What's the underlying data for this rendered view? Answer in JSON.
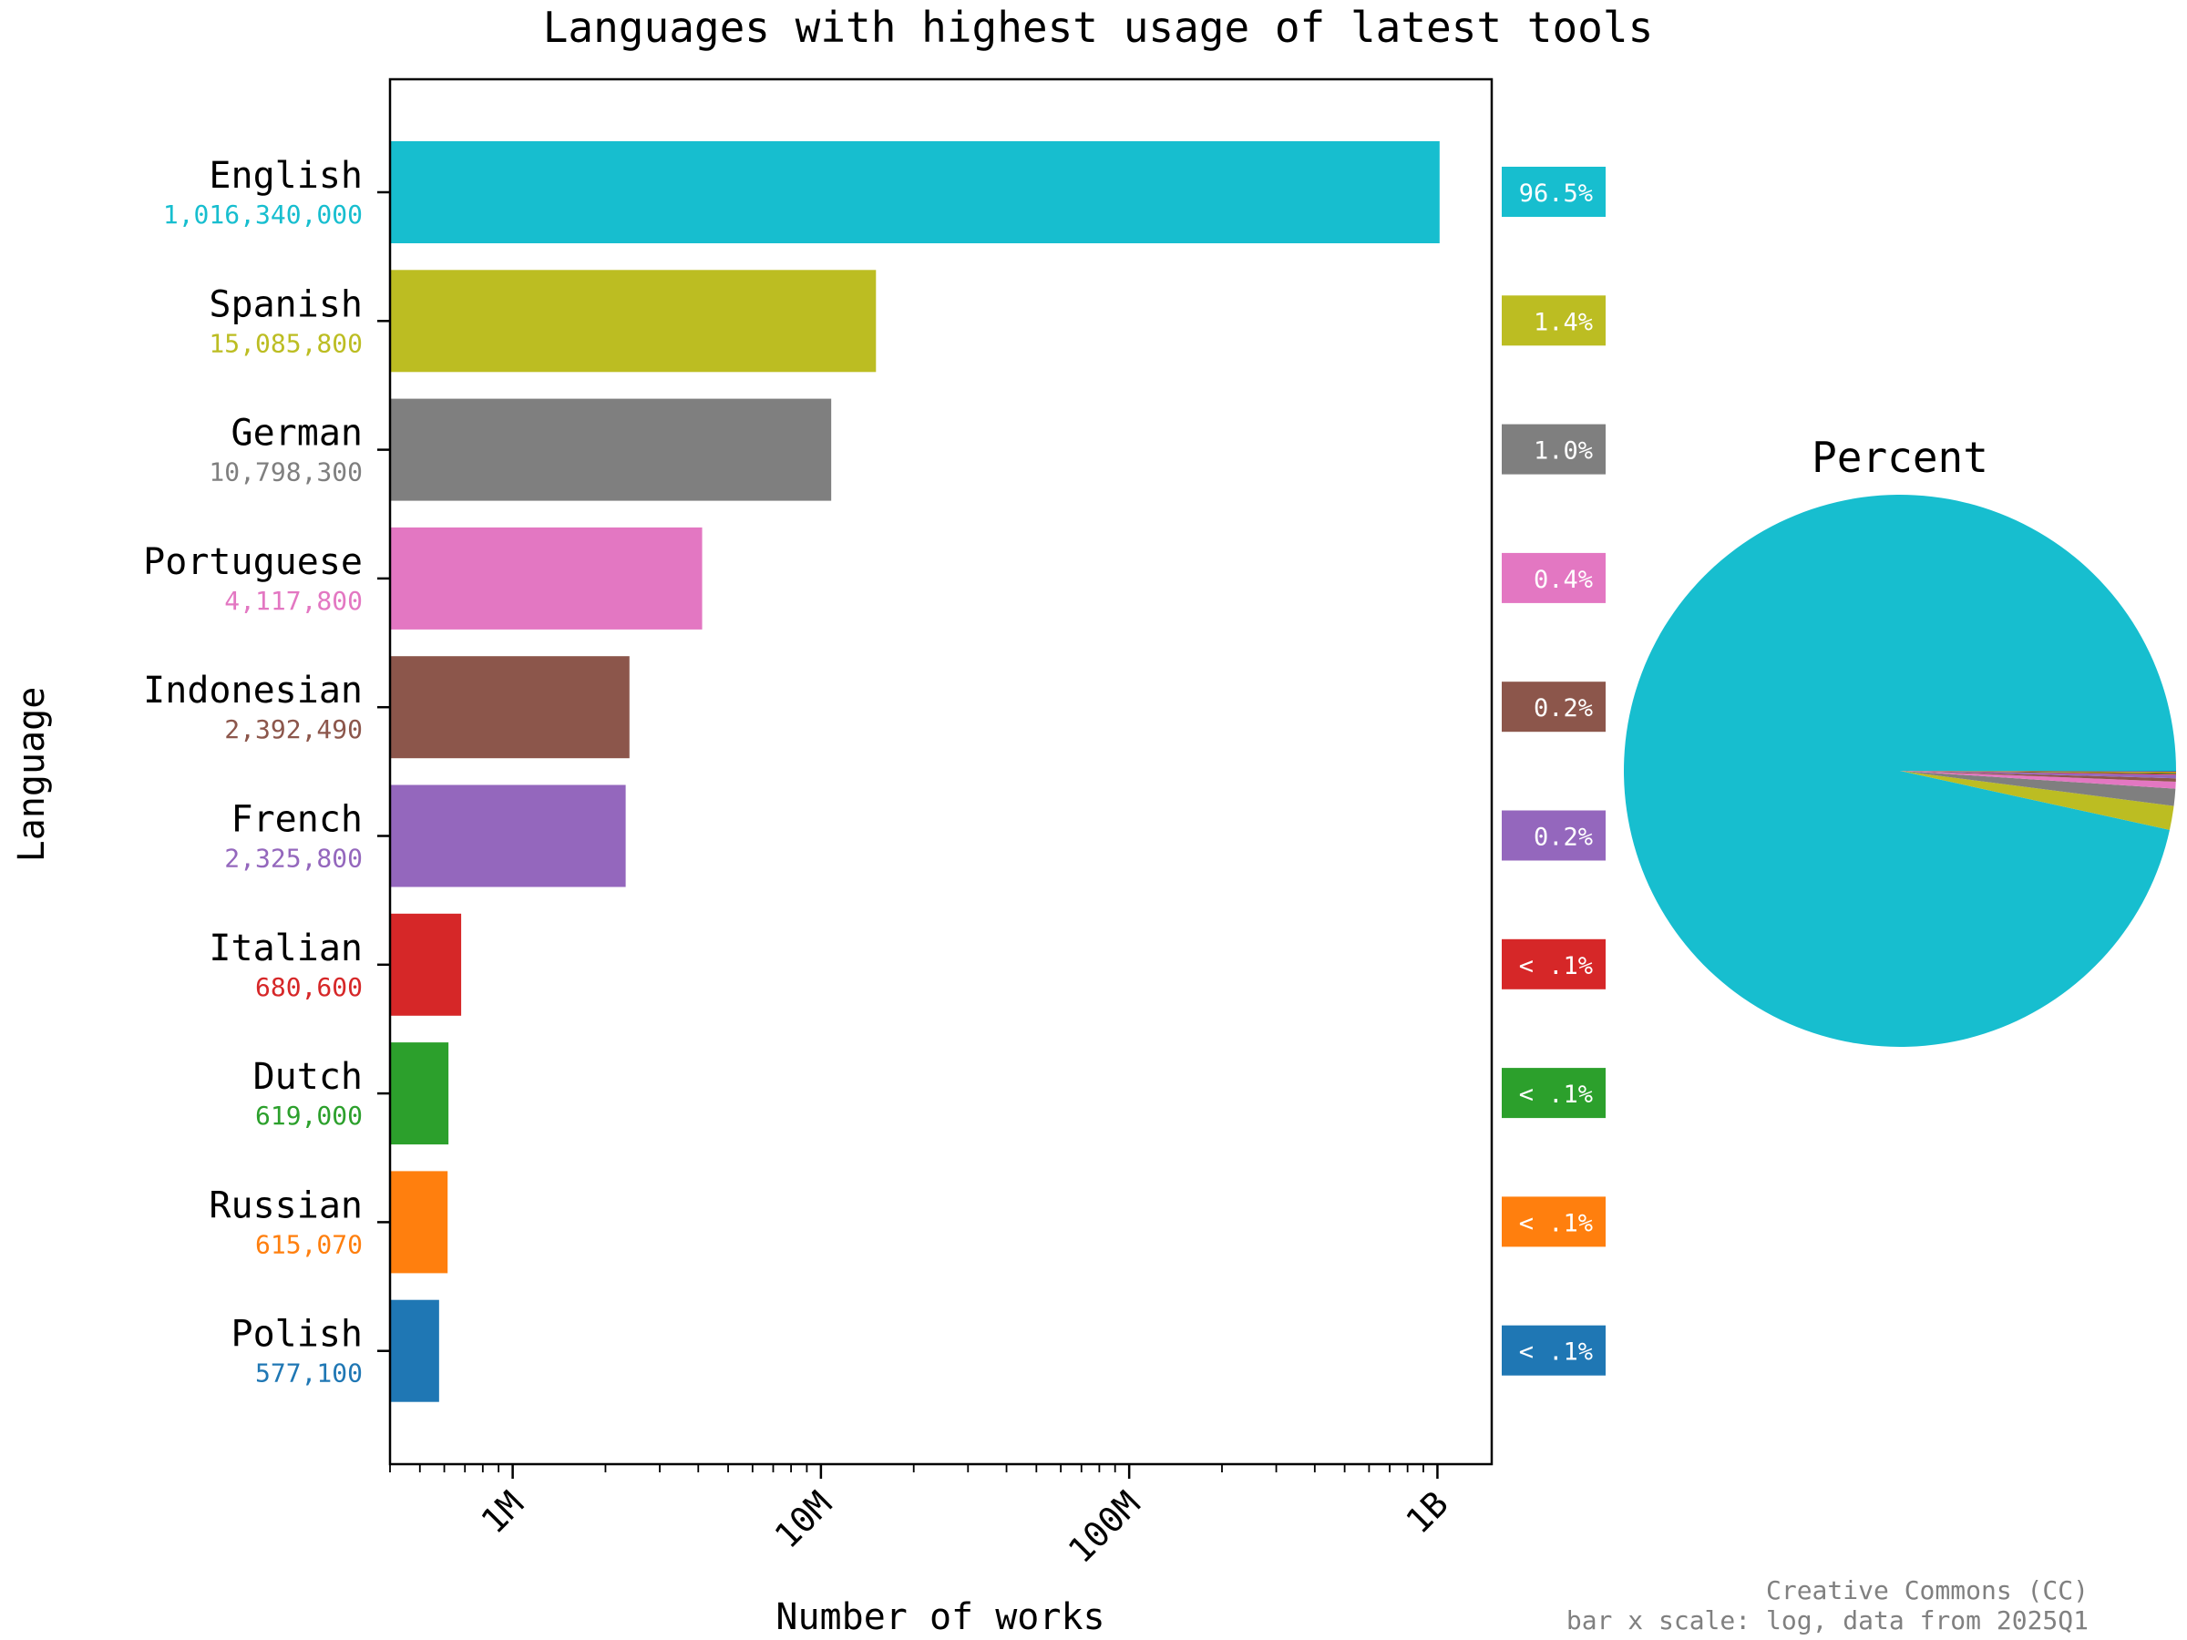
{
  "chart_data": [
    {
      "type": "bar",
      "orientation": "horizontal",
      "title": "Languages with highest usage of latest tools",
      "xlabel": "Number of works",
      "ylabel": "Language",
      "x_scale": "log",
      "xlim": [
        400000,
        1500000000
      ],
      "x_ticks": [
        {
          "value": 1000000,
          "label": "1M"
        },
        {
          "value": 10000000,
          "label": "10M"
        },
        {
          "value": 100000000,
          "label": "100M"
        },
        {
          "value": 1000000000,
          "label": "1B"
        }
      ],
      "categories": [
        "English",
        "Spanish",
        "German",
        "Portuguese",
        "Indonesian",
        "French",
        "Italian",
        "Dutch",
        "Russian",
        "Polish"
      ],
      "values": [
        1016340000,
        15085800,
        10798300,
        4117800,
        2392490,
        2325800,
        680600,
        619000,
        615070,
        577100
      ],
      "value_labels": [
        "1,016,340,000",
        "15,085,800",
        "10,798,300",
        "4,117,800",
        "2,392,490",
        "2,325,800",
        "680,600",
        "619,000",
        "615,070",
        "577,100"
      ],
      "percent_labels": [
        "96.5%",
        "1.4%",
        "1.0%",
        "0.4%",
        "0.2%",
        "0.2%",
        "< .1%",
        "< .1%",
        "< .1%",
        "< .1%"
      ],
      "colors": [
        "#17becf",
        "#bcbd22",
        "#7f7f7f",
        "#e377c2",
        "#8c564b",
        "#9467bd",
        "#d62728",
        "#2ca02c",
        "#ff7f0e",
        "#1f77b4"
      ],
      "grid": false,
      "legend": "none"
    },
    {
      "type": "pie",
      "title": "Percent",
      "categories": [
        "English",
        "Spanish",
        "German",
        "Portuguese",
        "Indonesian",
        "French",
        "Italian",
        "Dutch",
        "Russian",
        "Polish"
      ],
      "values": [
        96.5,
        1.4,
        1.0,
        0.4,
        0.2,
        0.2,
        0.06,
        0.06,
        0.06,
        0.05
      ],
      "colors": [
        "#17becf",
        "#bcbd22",
        "#7f7f7f",
        "#e377c2",
        "#8c564b",
        "#9467bd",
        "#d62728",
        "#2ca02c",
        "#ff7f0e",
        "#1f77b4"
      ],
      "start_angle_deg": 0,
      "direction": "counterclockwise"
    }
  ],
  "footer": {
    "line1": "Creative Commons (CC)",
    "line2": "bar x scale: log, data from 2025Q1"
  }
}
